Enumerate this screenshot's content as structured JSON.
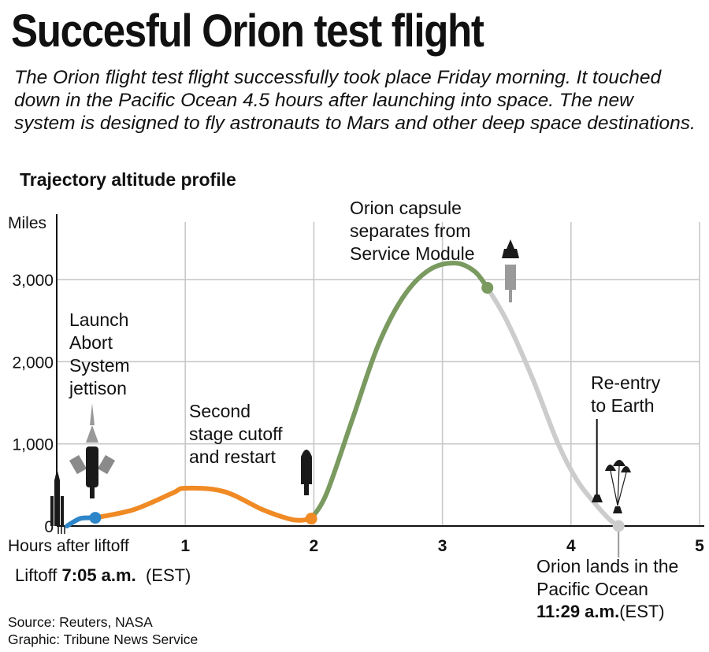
{
  "title": "Succesful Orion test flight",
  "subtitle": "The Orion flight test flight successfully took place Friday morning. It touched down in the Pacific Ocean 4.5 hours after launching into space. The new system is designed to fly astronauts to Mars and other deep space destinations.",
  "chart_data": {
    "type": "line",
    "title": "Trajectory altitude profile",
    "xlabel": "Hours after liftoff",
    "ylabel": "Miles",
    "xlim": [
      0,
      5
    ],
    "ylim": [
      0,
      3700
    ],
    "x_ticks": [
      "1",
      "2",
      "3",
      "4",
      "5"
    ],
    "y_ticks": [
      "0",
      "1,000",
      "2,000",
      "3,000"
    ],
    "grid": true,
    "series": [
      {
        "color": "#2e86c8",
        "x": [
          0.08,
          0.12,
          0.18,
          0.24,
          0.3
        ],
        "y": [
          0,
          40,
          90,
          100,
          100
        ]
      },
      {
        "color": "#f08a24",
        "x": [
          0.3,
          0.6,
          0.9,
          1.0,
          1.3,
          1.6,
          1.8,
          1.9,
          1.98
        ],
        "y": [
          100,
          200,
          400,
          460,
          420,
          200,
          90,
          70,
          90
        ]
      },
      {
        "color": "#7a9a60",
        "x": [
          1.98,
          2.1,
          2.3,
          2.5,
          2.7,
          2.9,
          3.1,
          3.25,
          3.35
        ],
        "y": [
          90,
          400,
          1300,
          2200,
          2800,
          3120,
          3200,
          3100,
          2900
        ]
      },
      {
        "color": "#cccccc",
        "x": [
          3.35,
          3.5,
          3.7,
          3.9,
          4.05,
          4.2,
          4.3,
          4.37
        ],
        "y": [
          2900,
          2500,
          1800,
          1000,
          550,
          250,
          80,
          0
        ]
      }
    ],
    "events": [
      {
        "x": 0.3,
        "y": 100,
        "color": "#2e86c8",
        "label": [
          "Launch",
          "Abort",
          "System",
          "jettison"
        ]
      },
      {
        "x": 1.98,
        "y": 90,
        "color": "#f08a24",
        "label": [
          "Second",
          "stage cutoff",
          "and restart"
        ]
      },
      {
        "x": 3.35,
        "y": 2900,
        "color": "#7a9a60",
        "label": [
          "Orion capsule",
          "separates from",
          "Service Module"
        ]
      },
      {
        "x": 4.22,
        "y": 1200,
        "color": "#111111",
        "label": [
          "Re-entry",
          "to Earth"
        ]
      },
      {
        "x": 4.37,
        "y": 0,
        "color": "#cccccc",
        "label": [
          "Orion lands in the",
          "Pacific Ocean"
        ]
      }
    ]
  },
  "liftoff": {
    "label": "Liftoff ",
    "time": "7:05 a.m.",
    "zone": "(EST)"
  },
  "landing": {
    "time": "11:29 a.m.",
    "zone": "(EST)"
  },
  "source": "Source: Reuters, NASA",
  "credit": "Graphic: Tribune News Service",
  "icons": [
    "rocket-stack-icon",
    "launch-abort-tower-icon",
    "orion-capsule-icon",
    "upper-stage-icon",
    "spacecraft-stack-icon",
    "parachutes-icon"
  ]
}
